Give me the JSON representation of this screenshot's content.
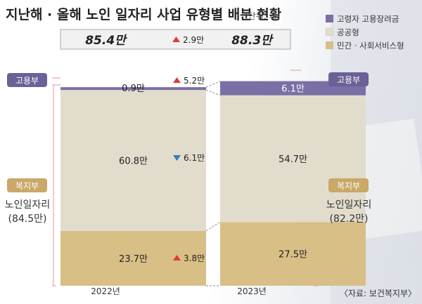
{
  "header": {
    "title": "지난해 · 올해 노인 일자리 사업 유형별 배분 현황",
    "unit": "(단위: 개)"
  },
  "legend": {
    "items": [
      {
        "label": "고령자 고용장려금",
        "color": "#7b6fa6"
      },
      {
        "label": "공공형",
        "color": "#e2dccd"
      },
      {
        "label": "민간 · 사회서비스형",
        "color": "#d8bf86"
      }
    ]
  },
  "totals": {
    "left": "85.4만",
    "change": "2.9만",
    "right": "88.3만"
  },
  "side_labels": {
    "left_top": "고용부",
    "right_top": "고용부",
    "left_mid_tag": "복지부",
    "left_mid_line1": "노인일자리",
    "left_mid_line2": "(84.5만)",
    "right_mid_tag": "복지부",
    "right_mid_line1": "노인일자리",
    "right_mid_line2": "(82.2만)"
  },
  "changes": [
    {
      "label": "5.2만",
      "direction": "up"
    },
    {
      "label": "6.1만",
      "direction": "down"
    },
    {
      "label": "3.8만",
      "direction": "up"
    }
  ],
  "source": "〈자료: 보건복지부〉",
  "colors": {
    "employment": "#7b6fa6",
    "public": "#e2dccd",
    "private": "#d8bf86",
    "up_arrow": "#e03a3a",
    "down_arrow": "#2f7fc2",
    "frame": "#e8a8a8",
    "tag_purple": "#6b6196",
    "tag_gold": "#c9a868"
  },
  "chart_data": {
    "type": "bar",
    "stacked": true,
    "categories": [
      "2022년",
      "2023년"
    ],
    "series": [
      {
        "name": "고령자 고용장려금",
        "values": [
          0.9,
          6.1
        ],
        "labels": [
          "0.9만",
          "6.1만"
        ]
      },
      {
        "name": "공공형",
        "values": [
          60.8,
          54.7
        ],
        "labels": [
          "60.8만",
          "54.7만"
        ]
      },
      {
        "name": "민간 · 사회서비스형",
        "values": [
          23.7,
          27.5
        ],
        "labels": [
          "23.7만",
          "27.5만"
        ]
      }
    ],
    "totals": [
      85.4,
      88.3
    ],
    "legend": "top-right"
  }
}
